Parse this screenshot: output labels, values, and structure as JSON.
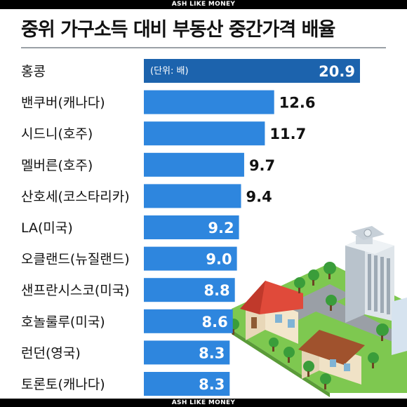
{
  "watermark_top": "ASH LIKE MONEY",
  "watermark_bottom": "ASH LIKE MONEY",
  "chart_data": {
    "type": "bar",
    "orientation": "horizontal",
    "title": "중위 가구소득 대비 부동산 중간가격 배율",
    "unit_label": "(단위: 배)",
    "categories": [
      "홍콩",
      "밴쿠버(캐나다)",
      "시드니(호주)",
      "멜버른(호주)",
      "산호세(코스타리카)",
      "LA(미국)",
      "오클랜드(뉴질랜드)",
      "샌프란시스코(미국)",
      "호놀룰루(미국)",
      "런던(영국)",
      "토론토(캐나다)"
    ],
    "values": [
      20.9,
      12.6,
      11.7,
      9.7,
      9.4,
      9.2,
      9.0,
      8.8,
      8.6,
      8.3,
      8.3
    ],
    "value_labels": [
      "20.9",
      "12.6",
      "11.7",
      "9.7",
      "9.4",
      "9.2",
      "9.0",
      "8.8",
      "8.6",
      "8.3",
      "8.3"
    ],
    "colors": {
      "highlight": "#1c63ad",
      "bar": "#2e86de",
      "label_text": "#111111"
    }
  }
}
